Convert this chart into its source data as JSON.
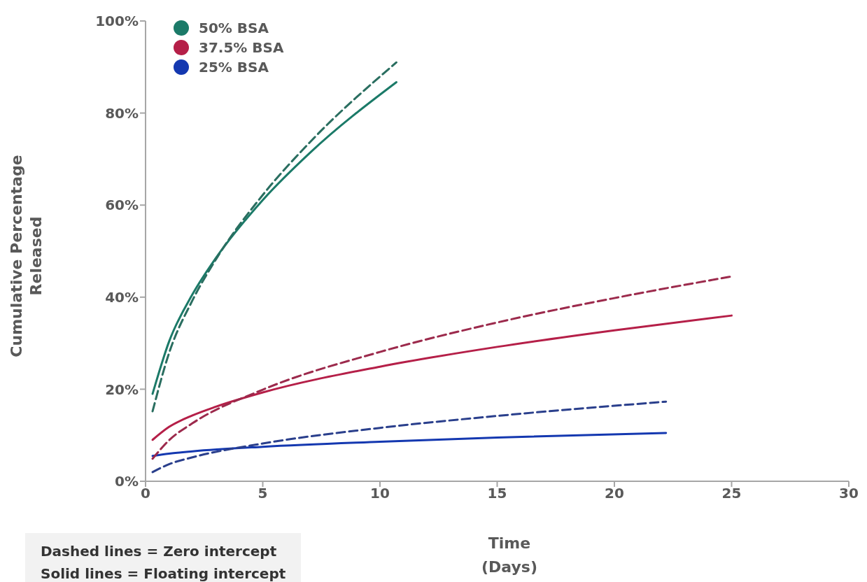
{
  "chart_data": {
    "type": "line",
    "xlabel": "Time (Days)",
    "ylabel": "Cumulative Percentage Released",
    "xlim": [
      0,
      30
    ],
    "xticks": [
      0,
      5,
      10,
      15,
      20,
      25,
      30
    ],
    "ylim": [
      0,
      100
    ],
    "yticks": [
      {
        "value": 0,
        "label": "0%"
      },
      {
        "value": 20,
        "label": "20%"
      },
      {
        "value": 40,
        "label": "40%"
      },
      {
        "value": 60,
        "label": "60%"
      },
      {
        "value": 80,
        "label": "80%"
      },
      {
        "value": 100,
        "label": "100%"
      }
    ],
    "legend": "top left",
    "marker": "none",
    "line_style": "solid",
    "annotations": [
      "Dashed lines = Zero intercept",
      "Solid lines = Floating intercept"
    ],
    "series": [
      {
        "name": "50% BSA",
        "color": "#1b7a68",
        "x": [
          0.3,
          1,
          2,
          3,
          5,
          7,
          10.7
        ],
        "values": [
          19,
          30.3,
          40.6,
          48.5,
          61.1,
          71.3,
          86.7
        ]
      },
      {
        "name": "37.5% BSA",
        "color": "#b51f48",
        "x": [
          0.3,
          1,
          2,
          3,
          5,
          10,
          15,
          20,
          25
        ],
        "values": [
          9,
          11.8,
          14.3,
          16.2,
          19.3,
          24.9,
          29.2,
          32.8,
          36
        ]
      },
      {
        "name": "25% BSA",
        "color": "#1438b0",
        "x": [
          0.3,
          1,
          2,
          5,
          10,
          15,
          22.2
        ],
        "values": [
          5.5,
          6,
          6.5,
          7.5,
          8.6,
          9.5,
          10.5
        ]
      },
      {
        "color": "#2a6e60",
        "line_style": "dashed",
        "x": [
          0.3,
          1,
          2,
          3,
          5,
          7,
          10.7
        ],
        "values": [
          15.2,
          27.8,
          39.3,
          48.2,
          62.2,
          73.6,
          91
        ]
      },
      {
        "color": "#9c2a4c",
        "line_style": "dashed",
        "x": [
          0.3,
          1,
          2,
          5,
          10,
          15,
          20,
          25
        ],
        "values": [
          4.9,
          8.9,
          12.6,
          19.9,
          28.1,
          34.5,
          39.8,
          44.5
        ]
      },
      {
        "color": "#2a3f8c",
        "line_style": "dashed",
        "x": [
          0.3,
          1,
          2,
          5,
          10,
          15,
          22.2
        ],
        "values": [
          2,
          3.7,
          5.2,
          8.2,
          11.6,
          14.2,
          17.3
        ]
      }
    ]
  }
}
